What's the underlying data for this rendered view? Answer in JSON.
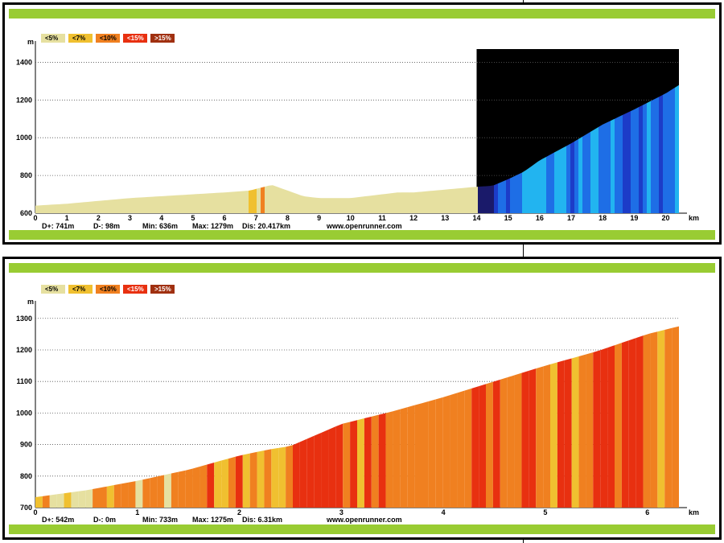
{
  "legend": [
    {
      "label": "<5%",
      "color": "#e6e0a0"
    },
    {
      "label": "<7%",
      "color": "#f0c030"
    },
    {
      "label": "<10%",
      "color": "#f08020"
    },
    {
      "label": "<15%",
      "color": "#e83010"
    },
    {
      "label": ">15%",
      "color": "#a03010"
    }
  ],
  "chart_data": [
    {
      "type": "area",
      "y_unit": "m",
      "x_unit": "km",
      "x_ticks": [
        "0",
        "1",
        "2",
        "3",
        "4",
        "5",
        "6",
        "7",
        "8",
        "9",
        "10",
        "11",
        "12",
        "13",
        "14",
        "15",
        "16",
        "17",
        "18",
        "19",
        "20"
      ],
      "y_ticks": [
        "600",
        "800",
        "1000",
        "1200",
        "1400"
      ],
      "xlim": [
        0,
        20.42
      ],
      "ylim": [
        600,
        1470
      ],
      "x": [
        0,
        1,
        2,
        3,
        4,
        5,
        6,
        6.8,
        7.5,
        8,
        8.5,
        9,
        9.5,
        10,
        11,
        11.5,
        12,
        13,
        14,
        14.5,
        15,
        15.5,
        16,
        17,
        18,
        19,
        20,
        20.42
      ],
      "y": [
        640,
        650,
        665,
        680,
        690,
        700,
        710,
        720,
        750,
        720,
        690,
        680,
        680,
        680,
        700,
        710,
        710,
        725,
        740,
        745,
        780,
        820,
        880,
        970,
        1070,
        1150,
        1235,
        1279
      ],
      "stats": {
        "d_plus": "D+: 741m",
        "d_minus": "D-: 98m",
        "min": "Min: 636m",
        "max": "Max: 1279m",
        "dis": "Dis: 20.417km"
      },
      "site": "www.openrunner.com"
    },
    {
      "type": "area",
      "y_unit": "m",
      "x_unit": "km",
      "x_ticks": [
        "0",
        "1",
        "2",
        "3",
        "4",
        "5",
        "6"
      ],
      "y_ticks": [
        "700",
        "800",
        "900",
        "1000",
        "1100",
        "1200",
        "1300"
      ],
      "xlim": [
        0,
        6.31
      ],
      "ylim": [
        700,
        1330
      ],
      "x": [
        0,
        0.5,
        1,
        1.5,
        2,
        2.3,
        2.5,
        3,
        3.5,
        4,
        4.5,
        5,
        5.5,
        6,
        6.31
      ],
      "y": [
        733,
        755,
        785,
        820,
        865,
        885,
        895,
        965,
        1005,
        1050,
        1100,
        1150,
        1195,
        1250,
        1275
      ],
      "stats": {
        "d_plus": "D+: 542m",
        "d_minus": "D-: 0m",
        "min": "Min: 733m",
        "max": "Max: 1275m",
        "dis": "Dis: 6.31km"
      },
      "site": "www.openrunner.com"
    }
  ]
}
